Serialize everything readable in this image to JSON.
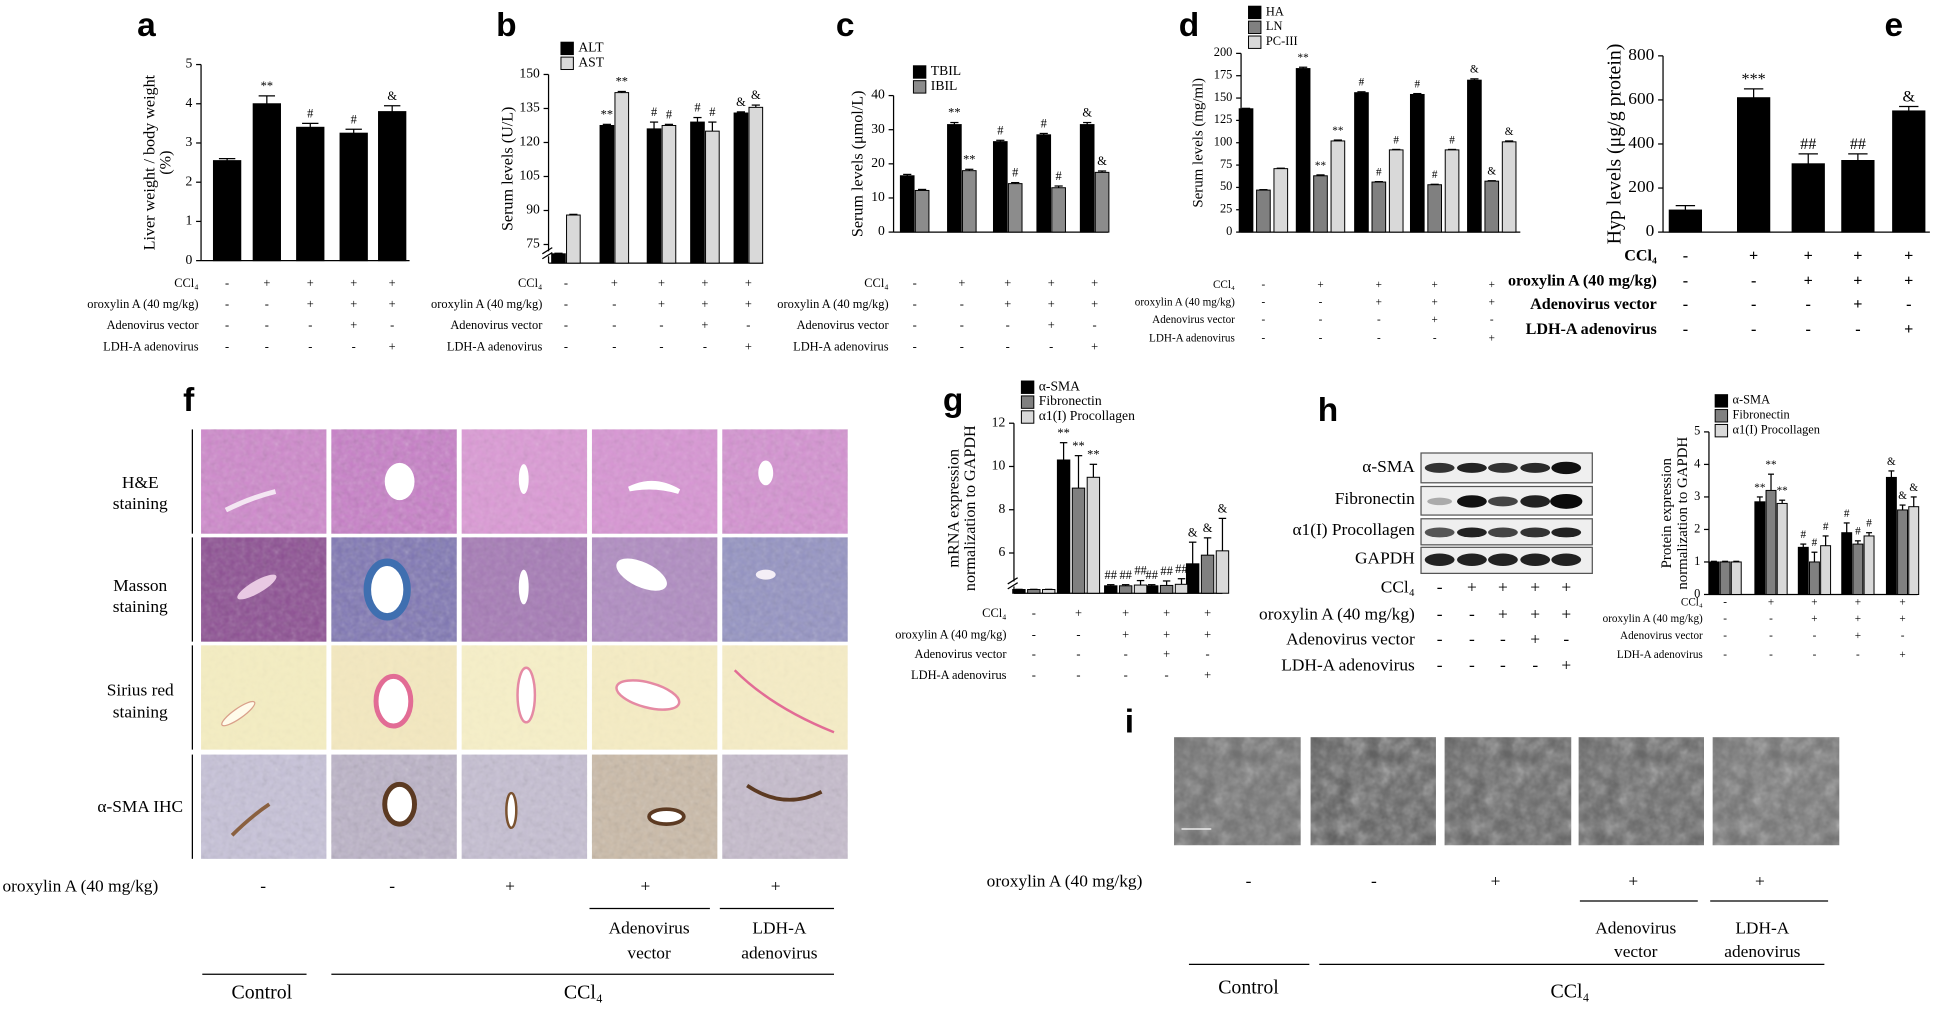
{
  "chart_data": [
    {
      "panel": "a",
      "type": "bar",
      "ylabel": [
        "Liver weight / body weight",
        "(%)"
      ],
      "ylim": [
        0,
        5
      ],
      "yticks": [
        0,
        1,
        2,
        3,
        4,
        5
      ],
      "series": [
        {
          "color": "#000000",
          "values": [
            2.55,
            4.0,
            3.4,
            3.25,
            3.8
          ],
          "errors": [
            0.05,
            0.2,
            0.1,
            0.1,
            0.15
          ],
          "sig": [
            null,
            "**",
            "#",
            "#",
            "&"
          ]
        }
      ],
      "treatments": [
        {
          "label": "CCl₄",
          "signs": [
            "-",
            "+",
            "+",
            "+",
            "+"
          ]
        },
        {
          "label": "oroxylin A (40 mg/kg)",
          "signs": [
            "-",
            "-",
            "+",
            "+",
            "+"
          ]
        },
        {
          "label": "Adenovirus vector",
          "signs": [
            "-",
            "-",
            "-",
            "+",
            "-"
          ]
        },
        {
          "label": "LDH-A adenovirus",
          "signs": [
            "-",
            "-",
            "-",
            "-",
            "+"
          ]
        }
      ]
    },
    {
      "panel": "b",
      "type": "bar",
      "ylabel": "Serum levels (U/L)",
      "ylim": [
        65,
        150
      ],
      "ybreak": 75,
      "yticks": [
        75,
        90,
        105,
        120,
        135,
        150
      ],
      "series": [
        {
          "name": "ALT",
          "color": "#000000",
          "values": [
            70,
            127.5,
            126,
            129,
            133
          ],
          "errors": [
            0.3,
            0.5,
            3,
            2,
            0.5
          ],
          "sig": [
            null,
            "**",
            "#",
            "#",
            "&"
          ]
        },
        {
          "name": "AST",
          "color": "#d9d9d9",
          "values": [
            88,
            142,
            127.5,
            125,
            135.5
          ],
          "errors": [
            0.3,
            0.5,
            0.5,
            4,
            1
          ],
          "sig": [
            null,
            "**",
            "#",
            "#",
            "&"
          ]
        }
      ],
      "treatments": [
        {
          "label": "CCl₄",
          "signs": [
            "-",
            "+",
            "+",
            "+",
            "+"
          ]
        },
        {
          "label": "oroxylin A (40 mg/kg)",
          "signs": [
            "-",
            "-",
            "+",
            "+",
            "+"
          ]
        },
        {
          "label": "Adenovirus vector",
          "signs": [
            "-",
            "-",
            "-",
            "+",
            "-"
          ]
        },
        {
          "label": "LDH-A adenovirus",
          "signs": [
            "-",
            "-",
            "-",
            "-",
            "+"
          ]
        }
      ]
    },
    {
      "panel": "c",
      "type": "bar",
      "ylabel": "Serum levels (μmol/L)",
      "ylim": [
        0,
        40
      ],
      "yticks": [
        0,
        10,
        20,
        30,
        40
      ],
      "series": [
        {
          "name": "TBIL",
          "color": "#000000",
          "values": [
            16.5,
            31.5,
            26.5,
            28.5,
            31.5
          ],
          "errors": [
            0.4,
            0.6,
            0.4,
            0.4,
            0.6
          ],
          "sig": [
            null,
            "**",
            "#",
            "#",
            "&"
          ]
        },
        {
          "name": "IBIL",
          "color": "#8c8c8c",
          "values": [
            12.2,
            18,
            14.2,
            13,
            17.5
          ],
          "errors": [
            0.3,
            0.4,
            0.3,
            0.5,
            0.4
          ],
          "sig": [
            null,
            "**",
            "#",
            "#",
            "&"
          ]
        }
      ],
      "treatments": [
        {
          "label": "CCl₄",
          "signs": [
            "-",
            "+",
            "+",
            "+",
            "+"
          ]
        },
        {
          "label": "oroxylin A (40 mg/kg)",
          "signs": [
            "-",
            "-",
            "+",
            "+",
            "+"
          ]
        },
        {
          "label": "Adenovirus vector",
          "signs": [
            "-",
            "-",
            "-",
            "+",
            "-"
          ]
        },
        {
          "label": "LDH-A adenovirus",
          "signs": [
            "-",
            "-",
            "-",
            "-",
            "+"
          ]
        }
      ]
    },
    {
      "panel": "d",
      "type": "bar",
      "ylabel": "Serum levels (mg/ml)",
      "ylim": [
        0,
        200
      ],
      "yticks": [
        0,
        25,
        50,
        75,
        100,
        125,
        150,
        175,
        200
      ],
      "series": [
        {
          "name": "HA",
          "color": "#000000",
          "values": [
            138,
            183,
            156,
            154,
            170
          ],
          "errors": [
            0.5,
            1.5,
            1,
            1,
            1.5
          ],
          "sig": [
            null,
            "**",
            "#",
            "#",
            "&"
          ]
        },
        {
          "name": "LN",
          "color": "#808080",
          "values": [
            47,
            63,
            56,
            53,
            57
          ],
          "errors": [
            0.5,
            1,
            0.5,
            0.5,
            0.5
          ],
          "sig": [
            null,
            "**",
            "#",
            "#",
            "&"
          ]
        },
        {
          "name": "PC-III",
          "color": "#d9d9d9",
          "values": [
            71,
            102,
            92,
            92,
            101
          ],
          "errors": [
            0.5,
            1,
            0.5,
            0.5,
            1
          ],
          "sig": [
            null,
            "**",
            "#",
            "#",
            "&"
          ]
        }
      ],
      "treatments": [
        {
          "label": "CCl₄",
          "signs": [
            "-",
            "+",
            "+",
            "+",
            "+"
          ]
        },
        {
          "label": "oroxylin A (40 mg/kg)",
          "signs": [
            "-",
            "-",
            "+",
            "+",
            "+"
          ]
        },
        {
          "label": "Adenovirus vector",
          "signs": [
            "-",
            "-",
            "-",
            "+",
            "-"
          ]
        },
        {
          "label": "LDH-A adenovirus",
          "signs": [
            "-",
            "-",
            "-",
            "-",
            "+"
          ]
        }
      ]
    },
    {
      "panel": "e",
      "type": "bar",
      "ylabel": "Hyp levels (μg/g protein)",
      "ylim": [
        0,
        800
      ],
      "yticks": [
        0,
        200,
        400,
        600,
        800
      ],
      "series": [
        {
          "color": "#000000",
          "values": [
            100,
            610,
            310,
            325,
            550
          ],
          "errors": [
            20,
            40,
            45,
            30,
            20
          ],
          "sig": [
            null,
            "***",
            "##",
            "##",
            "&"
          ]
        }
      ],
      "treatments": [
        {
          "label": "CCl₄",
          "signs": [
            "-",
            "+",
            "+",
            "+",
            "+"
          ]
        },
        {
          "label": "oroxylin A (40 mg/kg)",
          "signs": [
            "-",
            "-",
            "+",
            "+",
            "+"
          ]
        },
        {
          "label": "Adenovirus vector",
          "signs": [
            "-",
            "-",
            "-",
            "+",
            "-"
          ]
        },
        {
          "label": "LDH-A adenovirus",
          "signs": [
            "-",
            "-",
            "-",
            "-",
            "+"
          ]
        }
      ]
    },
    {
      "panel": "g",
      "type": "bar",
      "ylabel": [
        "mRNA expression",
        "normalization to GAPDH"
      ],
      "ylim": [
        0,
        12
      ],
      "ybreak": 5,
      "yticks": [
        6,
        8,
        10,
        12
      ],
      "series": [
        {
          "name": "α-SMA",
          "color": "#000000",
          "values": [
            1,
            10.3,
            2,
            2,
            5.5
          ],
          "errors": [
            0.05,
            0.8,
            0.3,
            0.3,
            1.0
          ],
          "sig": [
            null,
            "**",
            "##",
            "##",
            "&"
          ]
        },
        {
          "name": "Fibronectin",
          "color": "#808080",
          "values": [
            1,
            9.0,
            2,
            2.1,
            5.9
          ],
          "errors": [
            0.05,
            1.5,
            0.3,
            1.2,
            0.8
          ],
          "sig": [
            null,
            "**",
            "##",
            "##",
            "&"
          ]
        },
        {
          "name": "α1(I) Procollagen",
          "color": "#d9d9d9",
          "values": [
            1,
            9.5,
            2.2,
            2.4,
            6.1
          ],
          "errors": [
            0.05,
            0.6,
            1.2,
            1.5,
            1.5
          ],
          "sig": [
            null,
            "**",
            "##",
            "##",
            "&"
          ]
        }
      ],
      "treatments": [
        {
          "label": "CCl₄",
          "signs": [
            "-",
            "+",
            "+",
            "+",
            "+"
          ]
        },
        {
          "label": "oroxylin A (40 mg/kg)",
          "signs": [
            "-",
            "-",
            "+",
            "+",
            "+"
          ]
        },
        {
          "label": "Adenovirus vector",
          "signs": [
            "-",
            "-",
            "-",
            "+",
            "-"
          ]
        },
        {
          "label": "LDH-A adenovirus",
          "signs": [
            "-",
            "-",
            "-",
            "-",
            "+"
          ]
        }
      ]
    },
    {
      "type": "bar",
      "ylabel": [
        "Protein expression",
        "normalization to GAPDH"
      ],
      "ylim": [
        0,
        5
      ],
      "yticks": [
        0,
        1,
        2,
        3,
        4,
        5
      ],
      "series": [
        {
          "name": "α-SMA",
          "color": "#000000",
          "values": [
            1,
            2.85,
            1.45,
            1.9,
            3.6
          ],
          "errors": [
            0.02,
            0.15,
            0.1,
            0.3,
            0.2
          ],
          "sig": [
            null,
            "**",
            "#",
            "#",
            "&"
          ]
        },
        {
          "name": "Fibronectin",
          "color": "#808080",
          "values": [
            1,
            3.2,
            1.0,
            1.55,
            2.6
          ],
          "errors": [
            0.02,
            0.5,
            0.3,
            0.1,
            0.15
          ],
          "sig": [
            null,
            "**",
            "#",
            "#",
            "&"
          ]
        },
        {
          "name": "α1(I) Procollagen",
          "color": "#d9d9d9",
          "values": [
            1,
            2.8,
            1.5,
            1.8,
            2.7
          ],
          "errors": [
            0.02,
            0.1,
            0.3,
            0.1,
            0.3
          ],
          "sig": [
            null,
            "**",
            "#",
            "#",
            "&"
          ]
        }
      ],
      "treatments": [
        {
          "label": "CCl₄",
          "signs": [
            "-",
            "+",
            "+",
            "+",
            "+"
          ]
        },
        {
          "label": "oroxylin A (40 mg/kg)",
          "signs": [
            "-",
            "-",
            "+",
            "+",
            "+"
          ]
        },
        {
          "label": "Adenovirus vector",
          "signs": [
            "-",
            "-",
            "-",
            "+",
            "-"
          ]
        },
        {
          "label": "LDH-A adenovirus",
          "signs": [
            "-",
            "-",
            "-",
            "-",
            "+"
          ]
        }
      ]
    }
  ],
  "panel_f": {
    "panel": "f",
    "rows": [
      [
        "H&E",
        "staining"
      ],
      [
        "Masson",
        "staining"
      ],
      [
        "Sirius red",
        "staining"
      ],
      [
        "α-SMA IHC"
      ]
    ],
    "treatment": {
      "label": "oroxylin A (40 mg/kg)",
      "signs": [
        "-",
        "-",
        "+",
        "+",
        "+"
      ]
    },
    "groups": [
      [
        "Adenovirus",
        "vector"
      ],
      [
        "LDH-A",
        "adenovirus"
      ]
    ],
    "conditions": [
      "Control",
      "CCl₄"
    ]
  },
  "panel_h": {
    "panel": "h",
    "bands": [
      "α-SMA",
      "Fibronectin",
      "α1(I) Procollagen",
      "GAPDH"
    ],
    "treatments": [
      {
        "label": "CCl₄",
        "signs": [
          "-",
          "+",
          "+",
          "+",
          "+"
        ]
      },
      {
        "label": "oroxylin A (40 mg/kg)",
        "signs": [
          "-",
          "-",
          "+",
          "+",
          "+"
        ]
      },
      {
        "label": "Adenovirus vector",
        "signs": [
          "-",
          "-",
          "-",
          "+",
          "-"
        ]
      },
      {
        "label": "LDH-A adenovirus",
        "signs": [
          "-",
          "-",
          "-",
          "-",
          "+"
        ]
      }
    ]
  },
  "panel_i": {
    "panel": "i",
    "treatment": {
      "label": "oroxylin A (40 mg/kg)",
      "signs": [
        "-",
        "-",
        "+",
        "+",
        "+"
      ]
    },
    "groups": [
      [
        "Adenovirus",
        "vector"
      ],
      [
        "LDH-A",
        "adenovirus"
      ]
    ],
    "conditions": [
      "Control",
      "CCl₄"
    ]
  }
}
